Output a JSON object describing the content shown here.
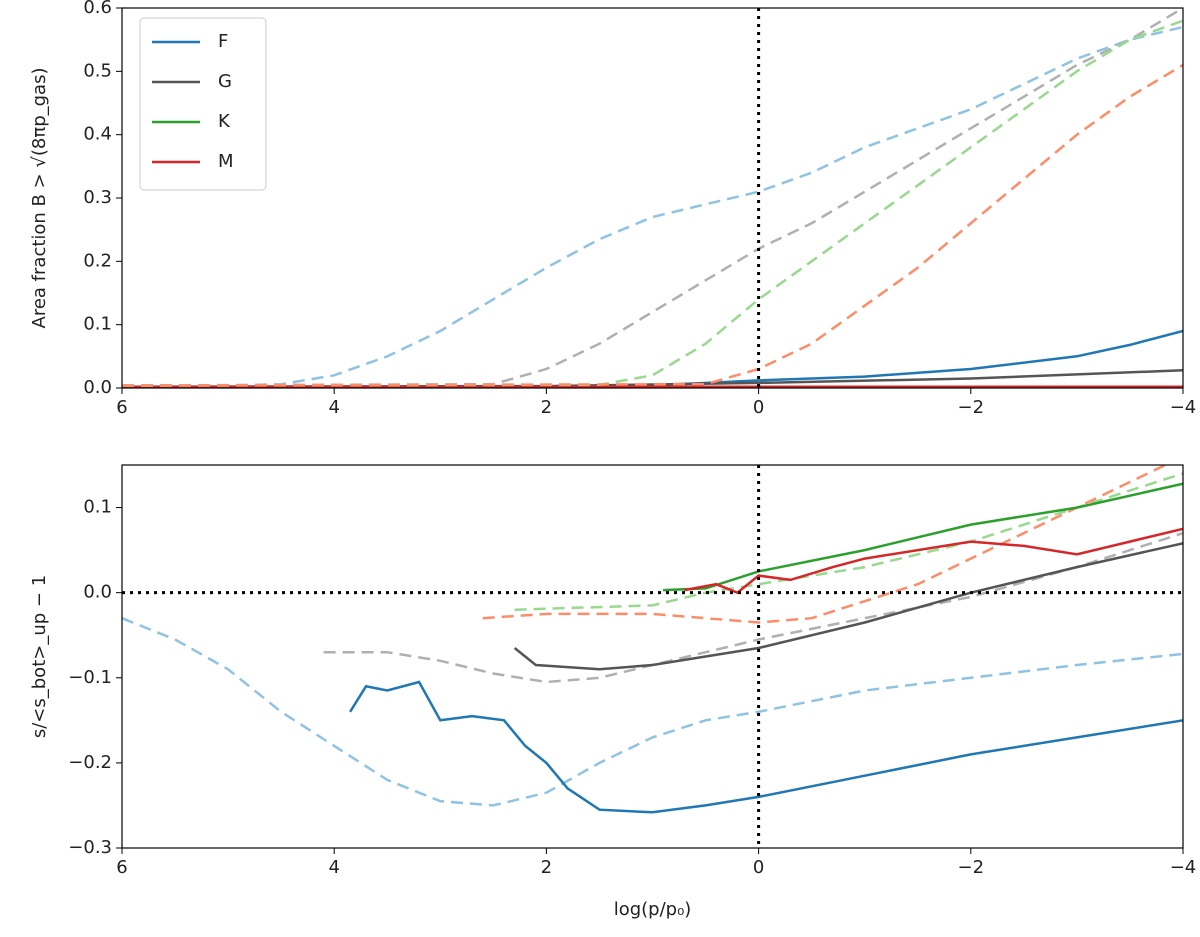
{
  "chart_data": [
    {
      "type": "line",
      "ylabel": "Area fraction B > √(8πp_gas)",
      "xlim": [
        6,
        -4
      ],
      "ylim": [
        0,
        0.6
      ],
      "xticks": [
        6,
        4,
        2,
        0,
        {
          "value": -2,
          "label": "−2"
        },
        {
          "value": -4,
          "label": "−4"
        }
      ],
      "yticks": [
        {
          "value": 0,
          "label": "0.0"
        },
        0.1,
        0.2,
        0.3,
        0.4,
        0.5,
        0.6
      ],
      "vlines": [
        0
      ],
      "legend": "upper left",
      "series": [
        {
          "name": "F",
          "color": "#1f77b4",
          "dashed": false,
          "x": [
            6,
            2,
            1,
            0,
            -1,
            -2,
            -3,
            -3.5,
            -4
          ],
          "values": [
            0.002,
            0.002,
            0.004,
            0.012,
            0.018,
            0.03,
            0.05,
            0.068,
            0.09
          ]
        },
        {
          "name": "G",
          "color": "#555555",
          "dashed": false,
          "x": [
            6,
            2,
            0,
            -2,
            -4
          ],
          "values": [
            0.002,
            0.003,
            0.008,
            0.015,
            0.028
          ]
        },
        {
          "name": "K",
          "color": "#2ca02c",
          "dashed": false,
          "x": [
            6,
            -4
          ],
          "values": [
            0.002,
            0.002
          ]
        },
        {
          "name": "M",
          "color": "#d62728",
          "dashed": false,
          "x": [
            6,
            -4
          ],
          "values": [
            0.002,
            0.002
          ]
        },
        {
          "color": "#8fc3e4",
          "dashed": true,
          "x": [
            6,
            5,
            4.5,
            4,
            3.5,
            3,
            2.5,
            2,
            1.5,
            1,
            0.5,
            0,
            -0.5,
            -1,
            -1.5,
            -2,
            -2.5,
            -3,
            -3.5,
            -4
          ],
          "values": [
            0.004,
            0.004,
            0.006,
            0.02,
            0.05,
            0.09,
            0.14,
            0.19,
            0.235,
            0.27,
            0.29,
            0.31,
            0.34,
            0.38,
            0.41,
            0.44,
            0.48,
            0.52,
            0.55,
            0.57
          ]
        },
        {
          "color": "#b0b0b0",
          "dashed": true,
          "x": [
            6,
            2.5,
            2,
            1.5,
            1,
            0.5,
            0,
            -0.5,
            -1,
            -1.5,
            -2,
            -2.5,
            -3,
            -3.5,
            -4
          ],
          "values": [
            0.004,
            0.006,
            0.03,
            0.07,
            0.12,
            0.17,
            0.22,
            0.26,
            0.31,
            0.36,
            0.41,
            0.46,
            0.51,
            0.55,
            0.6
          ]
        },
        {
          "color": "#98d98e",
          "dashed": true,
          "x": [
            6,
            1.5,
            1,
            0.5,
            0,
            -0.5,
            -1,
            -1.5,
            -2,
            -2.5,
            -3,
            -3.5,
            -4
          ],
          "values": [
            0.004,
            0.005,
            0.02,
            0.07,
            0.14,
            0.2,
            0.26,
            0.32,
            0.38,
            0.44,
            0.5,
            0.55,
            0.58
          ]
        },
        {
          "color": "#ff8c69",
          "dashed": true,
          "x": [
            6,
            0.5,
            0,
            -0.5,
            -1,
            -1.5,
            -2,
            -2.5,
            -3,
            -3.5,
            -4
          ],
          "values": [
            0.004,
            0.006,
            0.03,
            0.07,
            0.13,
            0.19,
            0.26,
            0.33,
            0.4,
            0.46,
            0.51
          ]
        }
      ]
    },
    {
      "type": "line",
      "ylabel": "s/<s_bot>_up − 1",
      "xlabel": "log(p/p₀)",
      "xlim": [
        6,
        -4
      ],
      "ylim": [
        -0.3,
        0.15
      ],
      "xticks": [
        6,
        4,
        2,
        0,
        {
          "value": -2,
          "label": "−2"
        },
        {
          "value": -4,
          "label": "−4"
        }
      ],
      "yticks": [
        {
          "value": -0.3,
          "label": "−0.3"
        },
        {
          "value": -0.2,
          "label": "−0.2"
        },
        {
          "value": -0.1,
          "label": "−0.1"
        },
        {
          "value": 0,
          "label": "0.0"
        },
        0.1
      ],
      "vlines": [
        0
      ],
      "hlines": [
        0
      ],
      "series": [
        {
          "color": "#8fc3e4",
          "dashed": true,
          "x": [
            6,
            5.5,
            5,
            4.5,
            4,
            3.5,
            3,
            2.5,
            2,
            1.5,
            1,
            0.5,
            0,
            -1,
            -2,
            -3,
            -4
          ],
          "values": [
            -0.03,
            -0.055,
            -0.09,
            -0.14,
            -0.18,
            -0.22,
            -0.245,
            -0.25,
            -0.235,
            -0.2,
            -0.17,
            -0.15,
            -0.14,
            -0.115,
            -0.1,
            -0.085,
            -0.072
          ]
        },
        {
          "color": "#b0b0b0",
          "dashed": true,
          "x": [
            4.1,
            3.5,
            3,
            2.5,
            2,
            1.5,
            1,
            0.5,
            0,
            -1,
            -2,
            -3,
            -4
          ],
          "values": [
            -0.07,
            -0.07,
            -0.08,
            -0.095,
            -0.105,
            -0.1,
            -0.085,
            -0.07,
            -0.055,
            -0.03,
            -0.005,
            0.03,
            0.07
          ]
        },
        {
          "color": "#98d98e",
          "dashed": true,
          "x": [
            2.3,
            1,
            0.5,
            0,
            -1,
            -2,
            -3,
            -4
          ],
          "values": [
            -0.02,
            -0.015,
            0,
            0.01,
            0.03,
            0.06,
            0.1,
            0.14
          ]
        },
        {
          "color": "#ff8c69",
          "dashed": true,
          "x": [
            2.6,
            2,
            1,
            0,
            -0.5,
            -1,
            -1.5,
            -2,
            -2.5,
            -3,
            -3.5,
            -4
          ],
          "values": [
            -0.03,
            -0.025,
            -0.025,
            -0.035,
            -0.03,
            -0.01,
            0.01,
            0.04,
            0.07,
            0.1,
            0.13,
            0.16
          ]
        },
        {
          "color": "#1f77b4",
          "dashed": false,
          "x": [
            3.85,
            3.7,
            3.5,
            3.2,
            3,
            2.7,
            2.4,
            2.2,
            2,
            1.8,
            1.5,
            1,
            0.5,
            0,
            -1,
            -2,
            -3,
            -4
          ],
          "values": [
            -0.14,
            -0.11,
            -0.115,
            -0.105,
            -0.15,
            -0.145,
            -0.15,
            -0.18,
            -0.2,
            -0.23,
            -0.255,
            -0.258,
            -0.25,
            -0.24,
            -0.215,
            -0.19,
            -0.17,
            -0.15
          ]
        },
        {
          "color": "#555555",
          "dashed": false,
          "x": [
            2.3,
            2.1,
            1.5,
            1,
            0.5,
            0,
            -1,
            -2,
            -3,
            -4
          ],
          "values": [
            -0.065,
            -0.085,
            -0.09,
            -0.085,
            -0.075,
            -0.065,
            -0.035,
            0,
            0.03,
            0.058
          ]
        },
        {
          "color": "#2ca02c",
          "dashed": false,
          "x": [
            0.9,
            0.5,
            0,
            -1,
            -2,
            -3,
            -4
          ],
          "values": [
            0.003,
            0.005,
            0.025,
            0.05,
            0.08,
            0.1,
            0.128
          ]
        },
        {
          "color": "#d62728",
          "dashed": false,
          "x": [
            0.7,
            0.4,
            0.2,
            0,
            -0.3,
            -0.7,
            -1,
            -2,
            -2.5,
            -3,
            -3.5,
            -4
          ],
          "values": [
            0.003,
            0.01,
            0,
            0.02,
            0.015,
            0.03,
            0.04,
            0.06,
            0.055,
            0.045,
            0.06,
            0.075
          ]
        }
      ]
    }
  ]
}
